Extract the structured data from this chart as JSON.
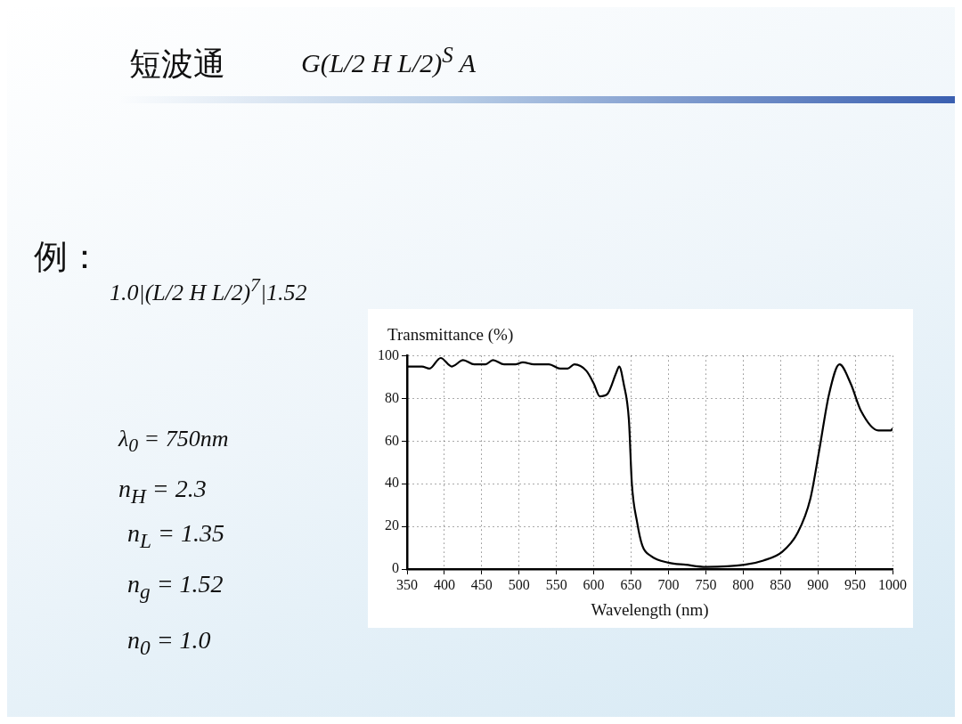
{
  "chart_data": {
    "type": "line",
    "title": "短波通",
    "xlabel": "Wavelength (nm)",
    "ylabel": "Transmittance (%)",
    "annotations": [
      "G(L/2 H L/2)$^{S}$ A",
      "例：",
      "1.0|(L/2 H L/2)$^{7}$|1.52",
      "λ$_{0}$ = 750nm",
      "n$_{H}$ = 2.3",
      "n$_{L}$ = 1.35",
      "n$_{g}$ = 1.52",
      "n$_{0}$ = 1.0"
    ],
    "x": [
      350,
      370,
      380,
      395,
      410,
      425,
      440,
      455,
      465,
      480,
      495,
      505,
      520,
      540,
      555,
      565,
      574,
      590,
      600,
      608,
      618,
      630,
      634,
      640,
      647,
      651,
      658,
      665,
      677,
      700,
      723,
      750,
      802,
      827,
      852,
      873,
      890,
      902,
      915,
      929,
      944,
      958,
      981,
      998,
      1000
    ],
    "series": [
      {
        "color": "#000000",
        "values": [
          95,
          95,
          94,
          99,
          95,
          98,
          96,
          96,
          98,
          96,
          96,
          97,
          96,
          96,
          94,
          94,
          96,
          93,
          87,
          81,
          82,
          92,
          95,
          87,
          70,
          40,
          22,
          11,
          6,
          3,
          2,
          1,
          2,
          4,
          8,
          17,
          33,
          56,
          82,
          96,
          87,
          74,
          65,
          65,
          66
        ]
      }
    ],
    "xlim": [
      350,
      1000
    ],
    "xticks": [
      350,
      400,
      450,
      500,
      550,
      600,
      650,
      700,
      750,
      800,
      850,
      900,
      950,
      1000
    ],
    "ylim": [
      0,
      100
    ],
    "yticks": [
      0,
      20,
      40,
      60,
      80,
      100
    ],
    "grid": true,
    "marker": "none",
    "line_style": "solid",
    "legend": false
  }
}
